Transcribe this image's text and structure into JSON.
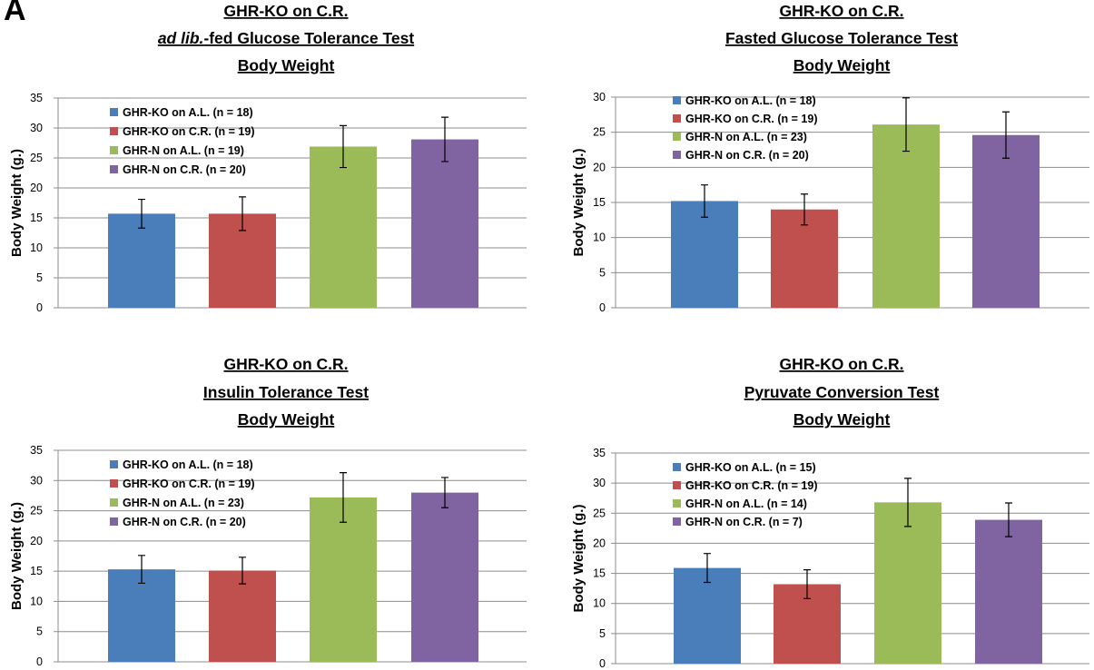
{
  "panel_label": "A",
  "series_colors": [
    "#4a7ebb",
    "#c0504d",
    "#9bbb59",
    "#8064a2"
  ],
  "chart_data": [
    {
      "type": "bar",
      "title_lines": [
        {
          "parts": [
            {
              "text": "GHR-KO on C.R.",
              "italic": false
            }
          ]
        },
        {
          "parts": [
            {
              "text": "ad lib.",
              "italic": true
            },
            {
              "text": "-fed Glucose Tolerance Test",
              "italic": false
            }
          ]
        },
        {
          "parts": [
            {
              "text": "Body Weight",
              "italic": false
            }
          ]
        }
      ],
      "ylabel": "Body Weight (g.)",
      "ylim": [
        0,
        35
      ],
      "yticks": [
        0,
        5,
        10,
        15,
        20,
        25,
        30,
        35
      ],
      "grid": true,
      "legend_position": "top-left",
      "series": [
        {
          "name": "GHR-KO on A.L. (n = 18)",
          "value": 15.7,
          "error": 2.4
        },
        {
          "name": "GHR-KO on C.R. (n = 19)",
          "value": 15.7,
          "error": 2.8
        },
        {
          "name": "GHR-N on A.L. (n = 19)",
          "value": 26.9,
          "error": 3.5
        },
        {
          "name": "GHR-N on C.R. (n = 20)",
          "value": 28.1,
          "error": 3.7
        }
      ]
    },
    {
      "type": "bar",
      "title_lines": [
        {
          "parts": [
            {
              "text": "GHR-KO on C.R.",
              "italic": false
            }
          ]
        },
        {
          "parts": [
            {
              "text": "Fasted Glucose Tolerance Test",
              "italic": false
            }
          ]
        },
        {
          "parts": [
            {
              "text": "Body Weight",
              "italic": false
            }
          ]
        }
      ],
      "ylabel": "Body Weight (g.)",
      "ylim": [
        0,
        30
      ],
      "yticks": [
        0,
        5,
        10,
        15,
        20,
        25,
        30
      ],
      "grid": true,
      "legend_position": "top-left",
      "series": [
        {
          "name": "GHR-KO on A.L. (n = 18)",
          "value": 15.2,
          "error": 2.3
        },
        {
          "name": "GHR-KO on C.R. (n = 19)",
          "value": 14.0,
          "error": 2.2
        },
        {
          "name": "GHR-N on A.L. (n = 23)",
          "value": 26.1,
          "error": 3.8
        },
        {
          "name": "GHR-N on C.R. (n = 20)",
          "value": 24.6,
          "error": 3.3
        }
      ]
    },
    {
      "type": "bar",
      "title_lines": [
        {
          "parts": [
            {
              "text": "GHR-KO on C.R.",
              "italic": false
            }
          ]
        },
        {
          "parts": [
            {
              "text": "Insulin Tolerance Test",
              "italic": false
            }
          ]
        },
        {
          "parts": [
            {
              "text": "Body Weight",
              "italic": false
            }
          ]
        }
      ],
      "ylabel": "Body Weight (g.)",
      "ylim": [
        0,
        35
      ],
      "yticks": [
        0,
        5,
        10,
        15,
        20,
        25,
        30,
        35
      ],
      "grid": true,
      "legend_position": "top-left",
      "series": [
        {
          "name": "GHR-KO on A.L. (n = 18)",
          "value": 15.3,
          "error": 2.3
        },
        {
          "name": "GHR-KO on C.R. (n = 19)",
          "value": 15.1,
          "error": 2.2
        },
        {
          "name": "GHR-N on A.L. (n = 23)",
          "value": 27.2,
          "error": 4.1
        },
        {
          "name": "GHR-N on C.R. (n = 20)",
          "value": 28.0,
          "error": 2.5
        }
      ]
    },
    {
      "type": "bar",
      "title_lines": [
        {
          "parts": [
            {
              "text": "GHR-KO on C.R.",
              "italic": false
            }
          ]
        },
        {
          "parts": [
            {
              "text": "Pyruvate Conversion Test",
              "italic": false
            }
          ]
        },
        {
          "parts": [
            {
              "text": "Body Weight",
              "italic": false
            }
          ]
        }
      ],
      "ylabel": "Body Weight (g.)",
      "ylim": [
        0,
        35
      ],
      "yticks": [
        0,
        5,
        10,
        15,
        20,
        25,
        30,
        35
      ],
      "grid": true,
      "legend_position": "top-left",
      "series": [
        {
          "name": "GHR-KO on A.L. (n = 15)",
          "value": 15.9,
          "error": 2.4
        },
        {
          "name": "GHR-KO on C.R. (n = 19)",
          "value": 13.2,
          "error": 2.4
        },
        {
          "name": "GHR-N on A.L. (n = 14)",
          "value": 26.8,
          "error": 4.0
        },
        {
          "name": "GHR-N on C.R. (n = 7)",
          "value": 23.9,
          "error": 2.8
        }
      ]
    }
  ]
}
